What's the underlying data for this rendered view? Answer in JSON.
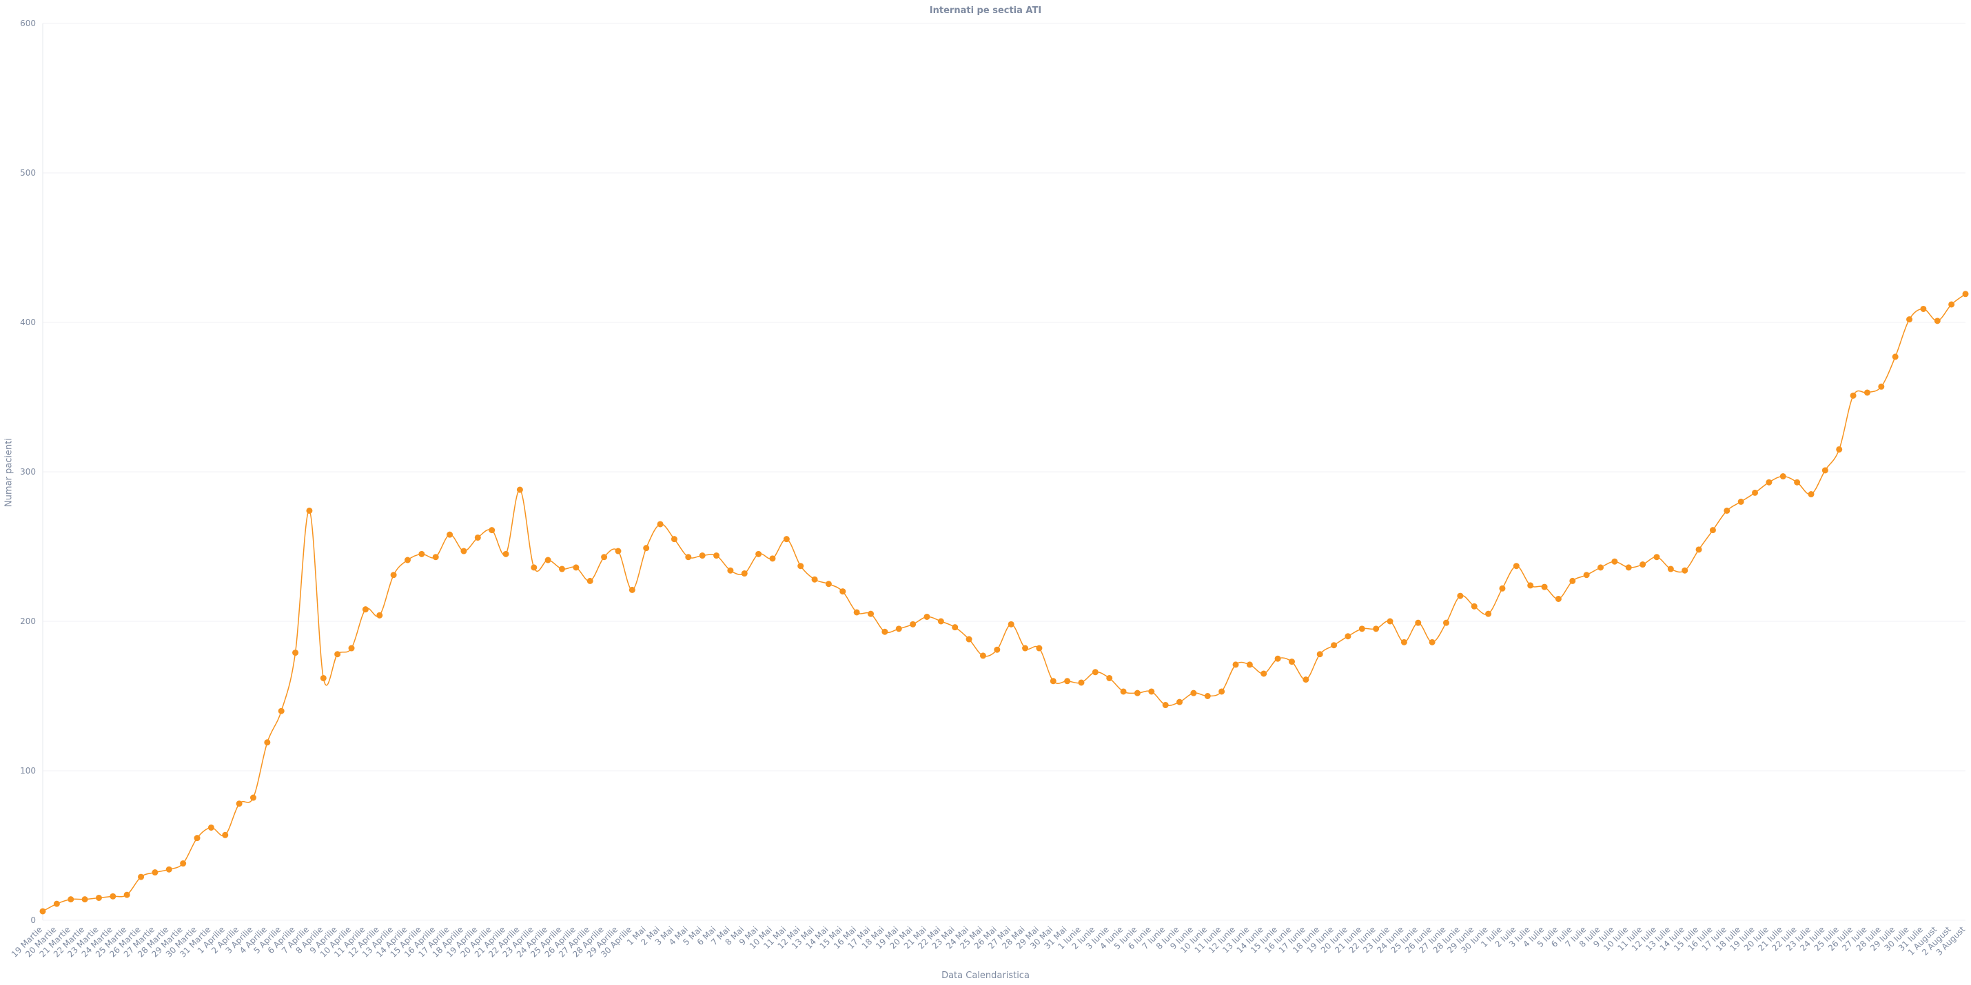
{
  "chart_data": {
    "type": "line",
    "title": "Internati pe sectia ATI",
    "xlabel": "Data Calendaristica",
    "ylabel": "Numar pacienti",
    "ylim": [
      0,
      600
    ],
    "yticks": [
      0,
      100,
      200,
      300,
      400,
      500,
      600
    ],
    "grid": true,
    "series_color": "#f7931e",
    "categories": [
      "19 Martie",
      "20 Martie",
      "21 Martie",
      "22 Martie",
      "23 Martie",
      "24 Martie",
      "25 Martie",
      "26 Martie",
      "27 Martie",
      "28 Martie",
      "29 Martie",
      "30 Martie",
      "31 Martie",
      "1 Aprilie",
      "2 Aprilie",
      "3 Aprilie",
      "4 Aprilie",
      "5 Aprilie",
      "6 Aprilie",
      "7 Aprilie",
      "8 Aprilie",
      "9 Aprilie",
      "10 Aprilie",
      "11 Aprilie",
      "12 Aprilie",
      "13 Aprilie",
      "14 Aprilie",
      "15 Aprilie",
      "16 Aprilie",
      "17 Aprilie",
      "18 Aprilie",
      "19 Aprilie",
      "20 Aprilie",
      "21 Aprilie",
      "22 Aprilie",
      "23 Aprilie",
      "24 Aprilie",
      "25 Aprilie",
      "26 Aprilie",
      "27 Aprilie",
      "28 Aprilie",
      "29 Aprilie",
      "30 Aprilie",
      "1 Mai",
      "2 Mai",
      "3 Mai",
      "4 Mai",
      "5 Mai",
      "6 Mai",
      "7 Mai",
      "8 Mai",
      "9 Mai",
      "10 Mai",
      "11 Mai",
      "12 Mai",
      "13 Mai",
      "14 Mai",
      "15 Mai",
      "16 Mai",
      "17 Mai",
      "18 Mai",
      "19 Mai",
      "20 Mai",
      "21 Mai",
      "22 Mai",
      "23 Mai",
      "24 Mai",
      "25 Mai",
      "26 Mai",
      "27 Mai",
      "28 Mai",
      "29 Mai",
      "30 Mai",
      "31 Mai",
      "1 Iunie",
      "2 Iunie",
      "3 Iunie",
      "4 Iunie",
      "5 Iunie",
      "6 Iunie",
      "7 Iunie",
      "8 Iunie",
      "9 Iunie",
      "10 Iunie",
      "11 Iunie",
      "12 Iunie",
      "13 Iunie",
      "14 Iunie",
      "15 Iunie",
      "16 Iunie",
      "17 Iunie",
      "18 Iunie",
      "19 Iunie",
      "20 Iunie",
      "21 Iunie",
      "22 Iunie",
      "23 Iunie",
      "24 Iunie",
      "25 Iunie",
      "26 Iunie",
      "27 Iunie",
      "28 Iunie",
      "29 Iunie",
      "30 Iunie",
      "1 Iulie",
      "2 Iulie",
      "3 Iulie",
      "4 Iulie",
      "5 Iulie",
      "6 Iulie",
      "7 Iulie",
      "8 Iulie",
      "9 Iulie",
      "10 Iulie",
      "11 Iulie",
      "12 Iulie",
      "13 Iulie",
      "14 Iulie",
      "15 Iulie",
      "16 Iulie",
      "17 Iulie",
      "18 Iulie",
      "19 Iulie",
      "20 Iulie",
      "21 Iulie",
      "22 Iulie",
      "23 Iulie",
      "24 Iulie",
      "25 Iulie",
      "26 Iulie",
      "27 Iulie",
      "28 Iulie",
      "29 Iulie",
      "30 Iulie",
      "31 Iulie",
      "1 August",
      "2 August",
      "3 August"
    ],
    "values": [
      6,
      11,
      14,
      14,
      15,
      16,
      17,
      29,
      32,
      34,
      38,
      55,
      62,
      57,
      78,
      82,
      119,
      140,
      179,
      274,
      162,
      178,
      182,
      208,
      204,
      231,
      241,
      245,
      243,
      258,
      247,
      256,
      261,
      245,
      288,
      236,
      241,
      235,
      236,
      227,
      243,
      247,
      221,
      249,
      265,
      255,
      243,
      244,
      244,
      234,
      232,
      245,
      242,
      255,
      237,
      228,
      225,
      220,
      206,
      205,
      193,
      195,
      198,
      203,
      200,
      196,
      188,
      177,
      181,
      198,
      182,
      182,
      160,
      160,
      159,
      166,
      162,
      153,
      152,
      153,
      144,
      146,
      152,
      150,
      153,
      171,
      171,
      165,
      175,
      173,
      161,
      178,
      184,
      190,
      195,
      195,
      200,
      186,
      199,
      186,
      199,
      217,
      210,
      205,
      222,
      237,
      224,
      223,
      215,
      227,
      231,
      236,
      240,
      236,
      238,
      243,
      235,
      234,
      248,
      261,
      274,
      280,
      286,
      293,
      297,
      293,
      285,
      301,
      315,
      351,
      353,
      357,
      377,
      402,
      409,
      401,
      412,
      419
    ]
  }
}
